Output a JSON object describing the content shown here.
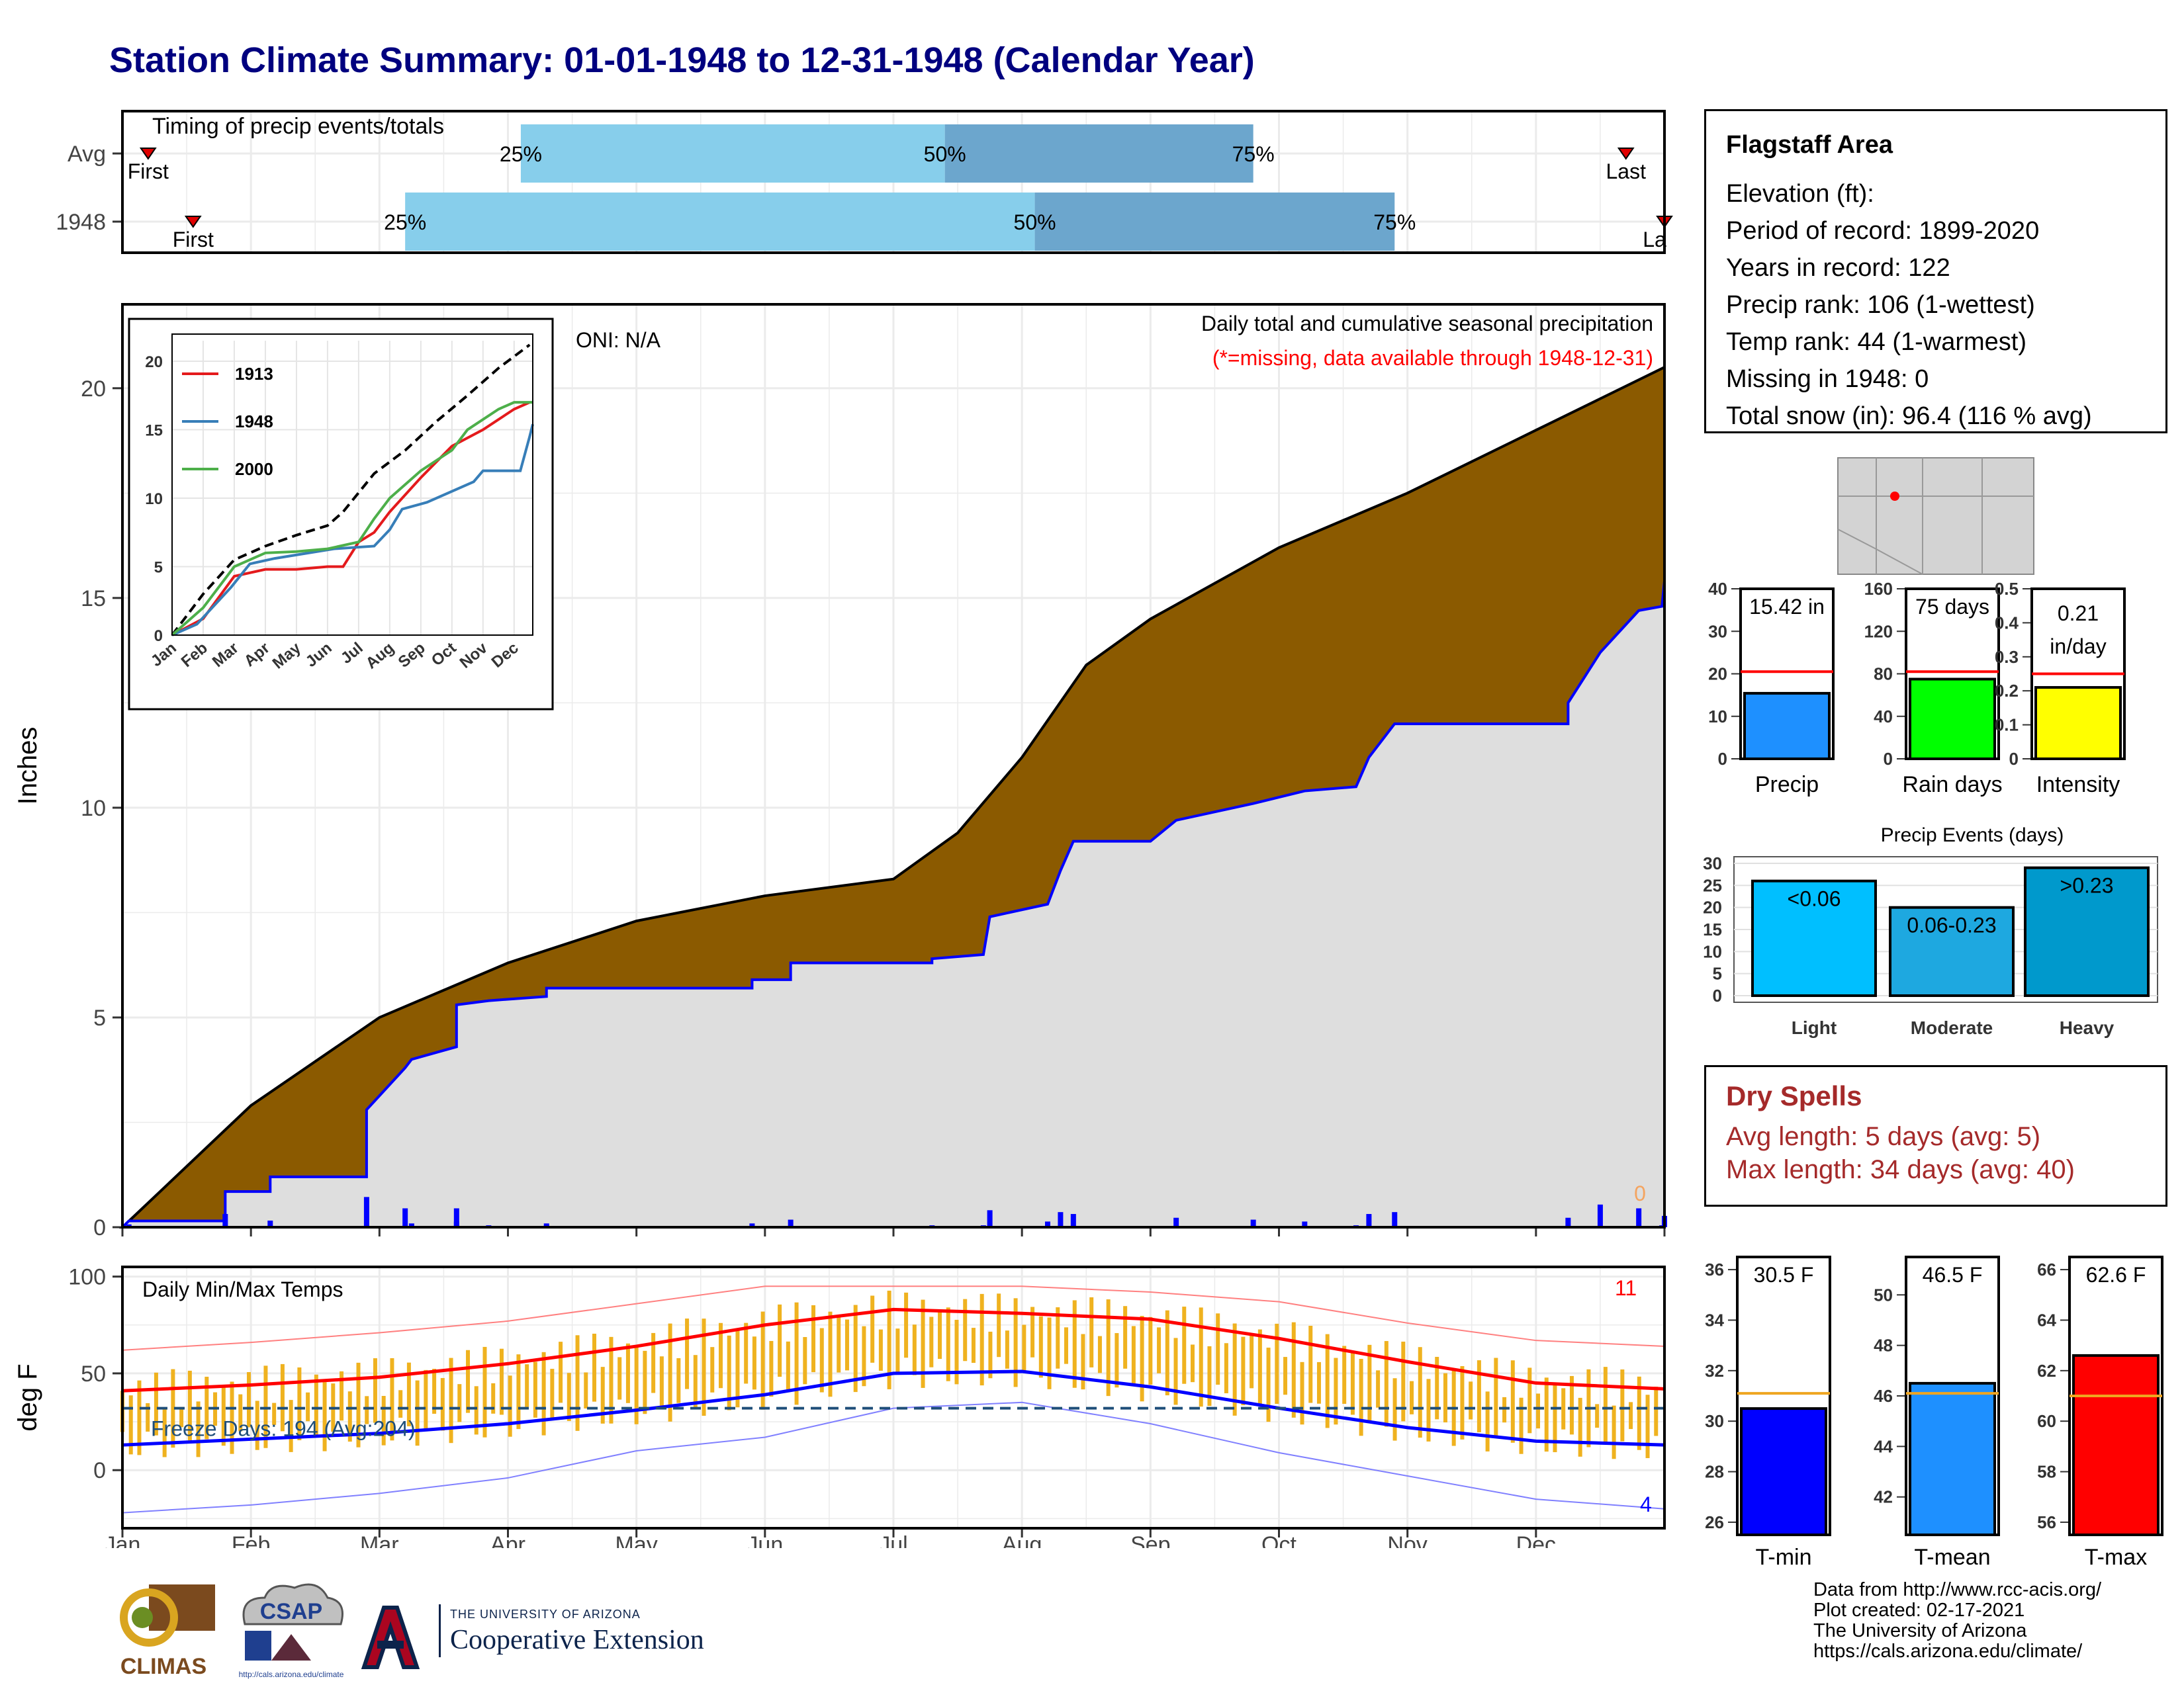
{
  "title": "Station Climate Summary: 01-01-1948 to 12-31-1948 (Calendar Year)",
  "colors": {
    "title": "#00007f",
    "brown": "#8b5a00",
    "grey_fill": "#dedede",
    "blue": "#0000ff",
    "red": "#ff0000",
    "orange": "#efb21f",
    "light_blue_bar": "#87ceeb",
    "dark_blue_bar": "#6ca6cd",
    "dry_text": "#a52a2a"
  },
  "timing": {
    "label": "Timing of precip events/totals",
    "rows": [
      {
        "name": "Avg",
        "first": "First",
        "last": "Last",
        "p25": "25%",
        "p50": "50%",
        "p75": "75%",
        "first_month": 0.2,
        "q25_month": 3.1,
        "q50_month": 6.4,
        "q75_month": 8.8,
        "last_month": 11.7
      },
      {
        "name": "1948",
        "first": "First",
        "last": "La",
        "p25": "25%",
        "p50": "50%",
        "p75": "75%",
        "first_month": 0.55,
        "q25_month": 2.2,
        "q50_month": 7.1,
        "q75_month": 9.9,
        "last_month": 12.0
      }
    ]
  },
  "main": {
    "ylabel": "Inches",
    "yticks": [
      0,
      5,
      10,
      15,
      20
    ],
    "ymax": 22,
    "oni": "ONI: N/A",
    "caption": "Daily total and cumulative seasonal precipitation",
    "missing_note": "(*=missing, data available through 1948-12-31)",
    "missing_count": "0",
    "avg_total": 20.5,
    "year_total": 15.42
  },
  "chart_data": [
    {
      "type": "area",
      "name": "cumulative-precip",
      "x_units": "month",
      "avg_cumulative": [
        [
          0,
          0
        ],
        [
          1,
          2.9
        ],
        [
          2,
          5
        ],
        [
          3,
          6.3
        ],
        [
          4,
          7.3
        ],
        [
          5,
          7.9
        ],
        [
          6,
          8.3
        ],
        [
          6.5,
          9.4
        ],
        [
          7,
          11.2
        ],
        [
          7.5,
          13.4
        ],
        [
          8,
          14.5
        ],
        [
          9,
          16.2
        ],
        [
          10,
          17.5
        ],
        [
          11,
          19
        ],
        [
          12,
          20.5
        ]
      ],
      "year_cumulative": [
        [
          0,
          0
        ],
        [
          0.05,
          0.15
        ],
        [
          0.8,
          0.15
        ],
        [
          0.8,
          0.85
        ],
        [
          1.15,
          0.85
        ],
        [
          1.15,
          1.2
        ],
        [
          1.9,
          1.2
        ],
        [
          1.9,
          2.8
        ],
        [
          2.2,
          3.8
        ],
        [
          2.25,
          4.0
        ],
        [
          2.6,
          4.3
        ],
        [
          2.6,
          5.3
        ],
        [
          2.85,
          5.4
        ],
        [
          3.3,
          5.5
        ],
        [
          3.3,
          5.7
        ],
        [
          4.9,
          5.7
        ],
        [
          4.9,
          5.9
        ],
        [
          5.2,
          5.9
        ],
        [
          5.2,
          6.3
        ],
        [
          6.3,
          6.3
        ],
        [
          6.3,
          6.4
        ],
        [
          6.7,
          6.5
        ],
        [
          6.75,
          7.4
        ],
        [
          7.2,
          7.7
        ],
        [
          7.3,
          8.5
        ],
        [
          7.4,
          9.2
        ],
        [
          7.5,
          9.2
        ],
        [
          8.0,
          9.2
        ],
        [
          8.2,
          9.7
        ],
        [
          8.8,
          10.1
        ],
        [
          9.2,
          10.4
        ],
        [
          9.6,
          10.5
        ],
        [
          9.7,
          11.2
        ],
        [
          9.9,
          12.0
        ],
        [
          11.25,
          12.0
        ],
        [
          11.25,
          12.5
        ],
        [
          11.5,
          13.7
        ],
        [
          11.8,
          14.7
        ],
        [
          11.98,
          14.8
        ],
        [
          12.0,
          15.4
        ]
      ]
    },
    {
      "type": "line",
      "name": "inset-cumulative",
      "categories": [
        "Jan",
        "Feb",
        "Mar",
        "Apr",
        "May",
        "Jun",
        "Jul",
        "Aug",
        "Sep",
        "Oct",
        "Nov",
        "Dec"
      ],
      "yticks": [
        0,
        5,
        10,
        15,
        20
      ],
      "series": [
        {
          "name": "",
          "color": "#000000",
          "dashed": true,
          "values": [
            [
              0,
              0
            ],
            [
              1,
              3
            ],
            [
              2,
              5.5
            ],
            [
              3,
              6.5
            ],
            [
              4,
              7.3
            ],
            [
              5,
              8
            ],
            [
              5.5,
              9
            ],
            [
              6.5,
              11.8
            ],
            [
              7.5,
              13.5
            ],
            [
              8.5,
              15.6
            ],
            [
              9.5,
              17.5
            ],
            [
              10.5,
              19.5
            ],
            [
              11.5,
              21.2
            ]
          ]
        },
        {
          "name": "1913",
          "color": "#e41a1c",
          "values": [
            [
              0,
              0
            ],
            [
              1,
              1.2
            ],
            [
              2,
              4.3
            ],
            [
              3,
              4.8
            ],
            [
              4,
              4.8
            ],
            [
              5,
              5
            ],
            [
              5.5,
              5
            ],
            [
              6,
              6.8
            ],
            [
              6.5,
              7.5
            ],
            [
              7,
              9
            ],
            [
              8,
              11.5
            ],
            [
              9,
              13.8
            ],
            [
              10,
              15
            ],
            [
              11,
              16.5
            ],
            [
              11.5,
              17
            ]
          ]
        },
        {
          "name": "1948",
          "color": "#377eb8",
          "values": [
            [
              0,
              0
            ],
            [
              0.8,
              0.8
            ],
            [
              1.9,
              3.5
            ],
            [
              2.5,
              5.2
            ],
            [
              3.3,
              5.6
            ],
            [
              5.2,
              6.3
            ],
            [
              6.5,
              6.5
            ],
            [
              7,
              7.7
            ],
            [
              7.4,
              9.2
            ],
            [
              8.2,
              9.7
            ],
            [
              9.7,
              11.2
            ],
            [
              10,
              12
            ],
            [
              11.2,
              12
            ],
            [
              11.5,
              14.5
            ],
            [
              11.6,
              15.4
            ]
          ]
        },
        {
          "name": "2000",
          "color": "#4daf4a",
          "values": [
            [
              0,
              0
            ],
            [
              1,
              2
            ],
            [
              2,
              5
            ],
            [
              3,
              6
            ],
            [
              4,
              6.1
            ],
            [
              5,
              6.3
            ],
            [
              6,
              6.8
            ],
            [
              6.5,
              8.5
            ],
            [
              7,
              10
            ],
            [
              8,
              12
            ],
            [
              9,
              13.5
            ],
            [
              9.5,
              15
            ],
            [
              10.5,
              16.5
            ],
            [
              11,
              17
            ],
            [
              11.6,
              17
            ]
          ]
        }
      ]
    },
    {
      "type": "bar",
      "name": "gauges-precip",
      "categories": [
        "Precip",
        "Rain days",
        "Intensity"
      ],
      "values": [
        15.42,
        75,
        0.21
      ],
      "averages": [
        20.5,
        82,
        0.25
      ],
      "labels": [
        "15.42 in",
        "75 days",
        "0.21 in/day"
      ],
      "yticks": [
        [
          0,
          10,
          20,
          30,
          40
        ],
        [
          0,
          40,
          80,
          120,
          160
        ],
        [
          0.0,
          0.1,
          0.2,
          0.3,
          0.4,
          0.5
        ]
      ],
      "ylim": [
        [
          0,
          40
        ],
        [
          0,
          160
        ],
        [
          0,
          0.5
        ]
      ]
    },
    {
      "type": "bar",
      "name": "precip-events",
      "title": "Precip Events (days)",
      "categories": [
        "Light",
        "Moderate",
        "Heavy"
      ],
      "values": [
        26,
        20,
        29
      ],
      "labels": [
        "<0.06",
        "0.06-0.23",
        ">0.23"
      ],
      "yticks": [
        0,
        5,
        10,
        15,
        20,
        25,
        30
      ],
      "ylim": [
        0,
        30
      ]
    },
    {
      "type": "bar",
      "name": "gauges-temp",
      "categories": [
        "T-min",
        "T-mean",
        "T-max"
      ],
      "values": [
        30.5,
        46.5,
        62.6
      ],
      "averages": [
        31.1,
        46.1,
        61.0
      ],
      "labels": [
        "30.5 F",
        "46.5 F",
        "62.6 F"
      ],
      "yticks": [
        [
          26,
          28,
          30,
          32,
          34,
          36
        ],
        [
          42,
          44,
          46,
          48,
          50
        ],
        [
          56,
          58,
          60,
          62,
          64,
          66
        ]
      ],
      "ylim": [
        [
          25.5,
          36.5
        ],
        [
          40.5,
          51.5
        ],
        [
          55.5,
          66.5
        ]
      ]
    },
    {
      "type": "line",
      "name": "daily-temps",
      "title": "Daily Min/Max Temps",
      "ylabel": "deg F",
      "yticks": [
        0,
        50,
        100
      ],
      "ylim": [
        -30,
        105
      ],
      "avg_max": [
        [
          0,
          41
        ],
        [
          1,
          44
        ],
        [
          2,
          48
        ],
        [
          3,
          55
        ],
        [
          4,
          64
        ],
        [
          5,
          75
        ],
        [
          6,
          83
        ],
        [
          7,
          81
        ],
        [
          8,
          78
        ],
        [
          9,
          68
        ],
        [
          10,
          56
        ],
        [
          11,
          45
        ],
        [
          12,
          42
        ]
      ],
      "avg_min": [
        [
          0,
          13
        ],
        [
          1,
          16
        ],
        [
          2,
          19
        ],
        [
          3,
          24
        ],
        [
          4,
          31
        ],
        [
          5,
          39
        ],
        [
          6,
          50
        ],
        [
          7,
          51
        ],
        [
          8,
          43
        ],
        [
          9,
          32
        ],
        [
          10,
          22
        ],
        [
          11,
          15
        ],
        [
          12,
          13
        ]
      ],
      "record_max": [
        [
          0,
          62
        ],
        [
          1,
          66
        ],
        [
          2,
          71
        ],
        [
          3,
          77
        ],
        [
          4,
          86
        ],
        [
          5,
          95
        ],
        [
          6,
          95
        ],
        [
          7,
          95
        ],
        [
          8,
          92
        ],
        [
          9,
          87
        ],
        [
          10,
          76
        ],
        [
          11,
          67
        ],
        [
          12,
          64
        ]
      ],
      "record_min": [
        [
          0,
          -22
        ],
        [
          1,
          -18
        ],
        [
          2,
          -12
        ],
        [
          3,
          -4
        ],
        [
          4,
          10
        ],
        [
          5,
          17
        ],
        [
          6,
          32
        ],
        [
          7,
          35
        ],
        [
          8,
          24
        ],
        [
          9,
          9
        ],
        [
          10,
          -3
        ],
        [
          11,
          -15
        ],
        [
          12,
          -20
        ]
      ],
      "freeze_line": 32,
      "freeze_text": "Freeze Days: 194 (Avg:204)",
      "record_high_count": "11",
      "record_low_count": "4"
    }
  ],
  "months": [
    "Jan",
    "Feb",
    "Mar",
    "Apr",
    "May",
    "Jun",
    "Jul",
    "Aug",
    "Sep",
    "Oct",
    "Nov",
    "Dec"
  ],
  "station": {
    "name": "Flagstaff Area",
    "elevation": "Elevation (ft):",
    "period": "Period of record: 1899-2020",
    "years": "Years in record: 122",
    "precip_rank": "Precip rank: 106 (1-wettest)",
    "temp_rank": "Temp rank: 44 (1-warmest)",
    "missing": "Missing in 1948: 0",
    "snow": "Total snow (in): 96.4 (116 % avg)"
  },
  "dry_spells": {
    "title": "Dry Spells",
    "avg": "Avg length: 5 days (avg: 5)",
    "max": "Max length: 34 days (avg: 40)"
  },
  "credits": {
    "line1": "Data from http://www.rcc-acis.org/",
    "line2": "Plot created: 02-17-2021",
    "line3": "The University of Arizona",
    "line4": "https://cals.arizona.edu/climate/"
  },
  "logos": {
    "climas": "CLIMAS",
    "csap": "CSAP",
    "csap_url": "http://cals.arizona.edu/climate",
    "ua_top": "THE UNIVERSITY OF ARIZONA",
    "ua_bottom": "Cooperative Extension"
  }
}
